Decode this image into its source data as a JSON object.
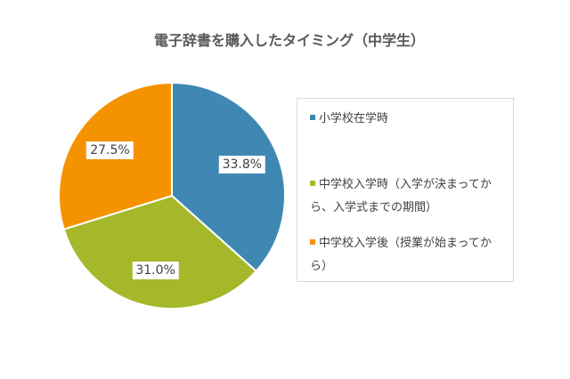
{
  "chart_data": {
    "type": "pie",
    "title": "電子辞書を購入したタイミング（中学生）",
    "start": "top",
    "direction": "clockwise",
    "legend_position": "right",
    "slices": [
      {
        "label": "小学校在学時",
        "value": 33.8,
        "display": "33.8%",
        "color": "#3f88b3"
      },
      {
        "label": "中学校入学時（入学が決まってから、入学式までの期間）",
        "value": 31.0,
        "display": "31.0%",
        "color": "#a5b82a"
      },
      {
        "label": "中学校入学後（授業が始まってから）",
        "value": 27.5,
        "display": "27.5%",
        "color": "#f59200"
      }
    ]
  }
}
